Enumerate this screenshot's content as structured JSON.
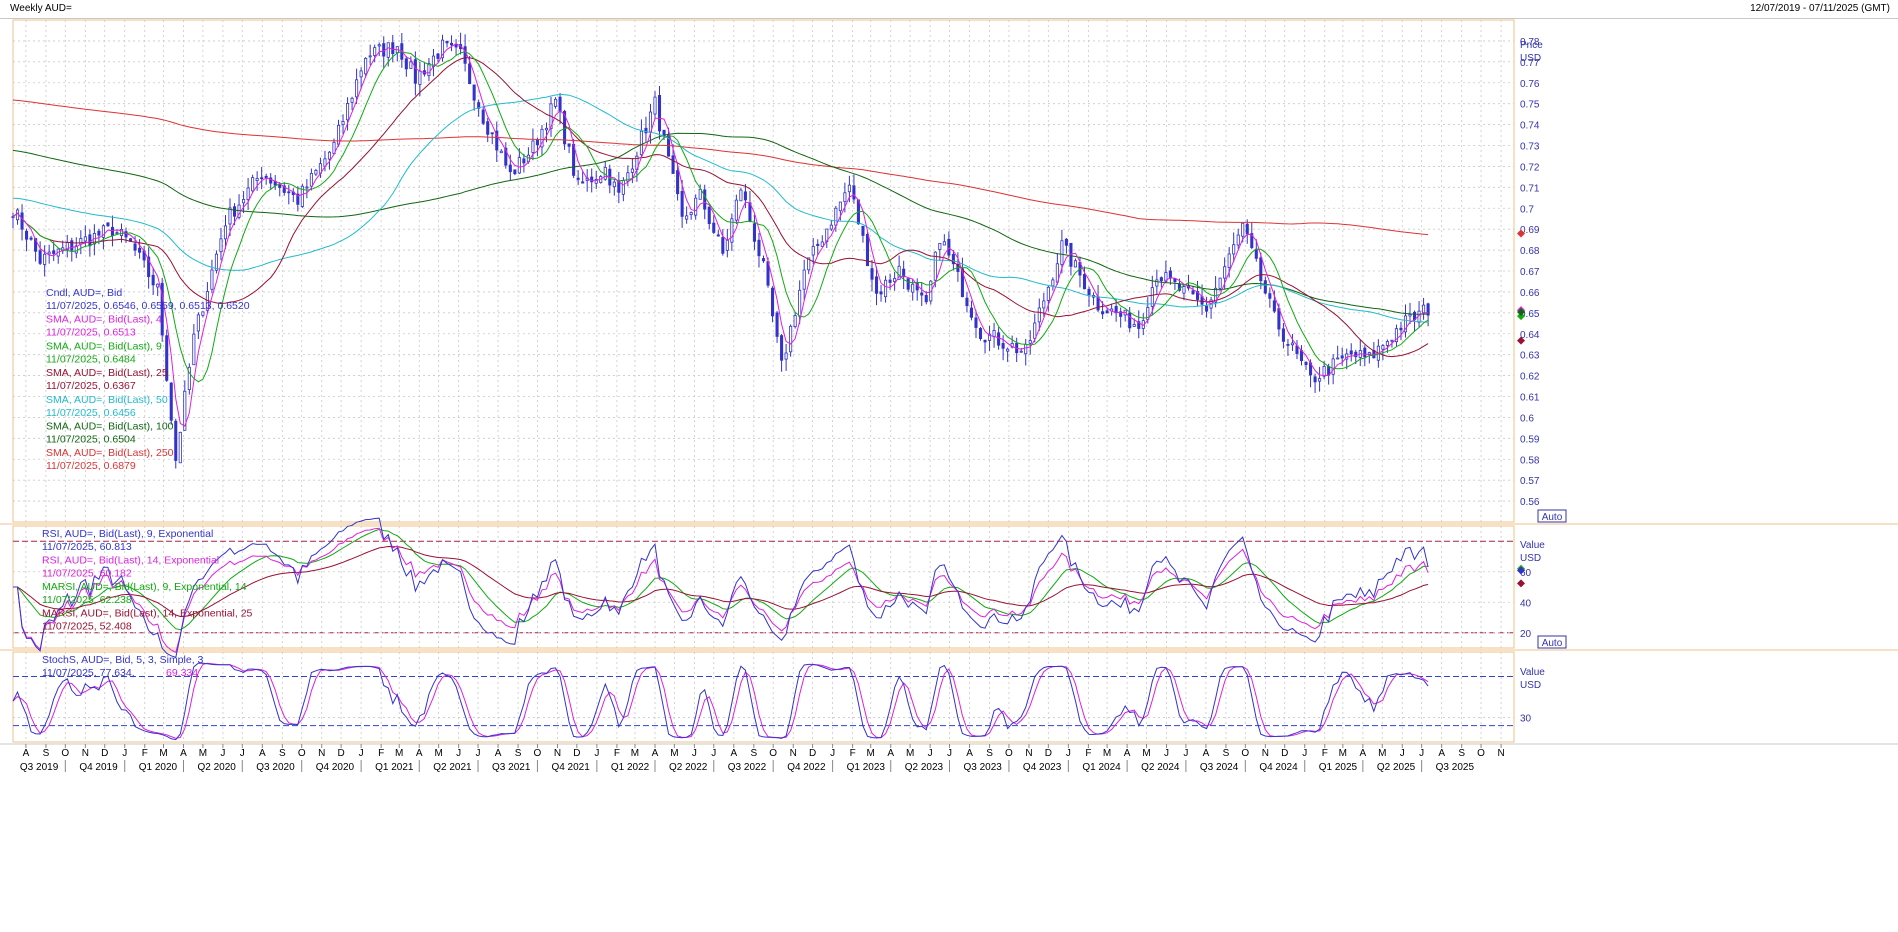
{
  "window": {
    "title": "Weekly AUD=",
    "date_range": "12/07/2019 - 07/11/2025 (GMT)"
  },
  "chart_data": [
    {
      "type": "candlestick",
      "panel": "price",
      "axis_title": "Price",
      "axis_unit": "USD",
      "scale_button": "Auto",
      "ylim": [
        0.55,
        0.79
      ],
      "y_ticks": [
        "0.78",
        "0.77",
        "0.76",
        "0.75",
        "0.74",
        "0.73",
        "0.72",
        "0.71",
        "0.7",
        "0.69",
        "0.68",
        "0.67",
        "0.66",
        "0.65",
        "0.64",
        "0.63",
        "0.62",
        "0.61",
        "0.6",
        "0.59",
        "0.58",
        "0.57",
        "0.56"
      ],
      "x_range": [
        "2019-07-12",
        "2025-11-21"
      ],
      "close_anchors": [
        [
          "2019-07-12",
          0.7
        ],
        [
          "2019-08-23",
          0.675
        ],
        [
          "2019-10-18",
          0.683
        ],
        [
          "2019-12-13",
          0.69
        ],
        [
          "2020-01-10",
          0.683
        ],
        [
          "2020-02-21",
          0.661
        ],
        [
          "2020-03-20",
          0.58
        ],
        [
          "2020-04-17",
          0.638
        ],
        [
          "2020-06-05",
          0.694
        ],
        [
          "2020-07-31",
          0.717
        ],
        [
          "2020-09-25",
          0.704
        ],
        [
          "2020-11-20",
          0.73
        ],
        [
          "2021-01-08",
          0.773
        ],
        [
          "2021-02-26",
          0.778
        ],
        [
          "2021-03-26",
          0.762
        ],
        [
          "2021-05-07",
          0.777
        ],
        [
          "2021-06-04",
          0.773
        ],
        [
          "2021-07-09",
          0.744
        ],
        [
          "2021-08-20",
          0.716
        ],
        [
          "2021-09-24",
          0.729
        ],
        [
          "2021-10-29",
          0.751
        ],
        [
          "2021-12-03",
          0.71
        ],
        [
          "2022-01-14",
          0.719
        ],
        [
          "2022-02-04",
          0.706
        ],
        [
          "2022-04-01",
          0.75
        ],
        [
          "2022-05-13",
          0.694
        ],
        [
          "2022-06-10",
          0.706
        ],
        [
          "2022-07-15",
          0.678
        ],
        [
          "2022-08-12",
          0.71
        ],
        [
          "2022-09-16",
          0.671
        ],
        [
          "2022-10-14",
          0.624
        ],
        [
          "2022-11-18",
          0.67
        ],
        [
          "2023-01-27",
          0.711
        ],
        [
          "2023-03-10",
          0.659
        ],
        [
          "2023-04-14",
          0.671
        ],
        [
          "2023-05-26",
          0.652
        ],
        [
          "2023-06-16",
          0.687
        ],
        [
          "2023-08-18",
          0.641
        ],
        [
          "2023-10-27",
          0.631
        ],
        [
          "2023-12-22",
          0.682
        ],
        [
          "2024-02-16",
          0.654
        ],
        [
          "2024-04-19",
          0.644
        ],
        [
          "2024-05-17",
          0.669
        ],
        [
          "2024-08-02",
          0.652
        ],
        [
          "2024-09-27",
          0.691
        ],
        [
          "2024-11-15",
          0.647
        ],
        [
          "2025-01-10",
          0.618
        ],
        [
          "2025-03-14",
          0.63
        ],
        [
          "2025-04-11",
          0.628
        ],
        [
          "2025-05-30",
          0.644
        ],
        [
          "2025-07-11",
          0.652
        ]
      ],
      "legend": [
        {
          "name": "Cndl, AUD=, Bid",
          "value": "11/07/2025, 0.6546, 0.6559, 0.6513, 0.6520",
          "color": "#3333cc"
        },
        {
          "name": "SMA, AUD=, Bid(Last), 4",
          "value": "11/07/2025, 0.6513",
          "color": "#dd22dd"
        },
        {
          "name": "SMA, AUD=, Bid(Last), 9",
          "value": "11/07/2025, 0.6484",
          "color": "#11aa11"
        },
        {
          "name": "SMA, AUD=, Bid(Last), 25",
          "value": "11/07/2025, 0.6367",
          "color": "#991133"
        },
        {
          "name": "SMA, AUD=, Bid(Last), 50",
          "value": "11/07/2025, 0.6456",
          "color": "#22bbcc"
        },
        {
          "name": "SMA, AUD=, Bid(Last), 100",
          "value": "11/07/2025, 0.6504",
          "color": "#116611"
        },
        {
          "name": "SMA, AUD=, Bid(Last), 250",
          "value": "11/07/2025, 0.6879",
          "color": "#dd3333"
        }
      ],
      "colors": {
        "candle": "#3333cc",
        "sma4": "#dd22dd",
        "sma9": "#11aa11",
        "sma25": "#991133",
        "sma50": "#22bbcc",
        "sma100": "#116611",
        "sma250": "#dd3333"
      }
    },
    {
      "type": "line",
      "panel": "rsi",
      "axis_title": "Value",
      "axis_unit": "USD",
      "scale_button": "Auto",
      "ylim": [
        10,
        90
      ],
      "y_ticks": [
        "60",
        "40",
        "20"
      ],
      "reference_lines": [
        80,
        20
      ],
      "legend": [
        {
          "name": "RSI, AUD=, Bid(Last), 9, Exponential",
          "value": "11/07/2025, 60.813",
          "color": "#3333cc"
        },
        {
          "name": "RSI, AUD=, Bid(Last), 14, Exponential",
          "value": "11/07/2025, 60.182",
          "color": "#dd22dd"
        },
        {
          "name": "MARSI, AUD=, Bid(Last), 9, Exponential, 14",
          "value": "11/07/2025, 62.238",
          "color": "#11aa11"
        },
        {
          "name": "MARSI, AUD=, Bid(Last), 14, Exponential, 25",
          "value": "11/07/2025, 52.408",
          "color": "#991133"
        }
      ]
    },
    {
      "type": "line",
      "panel": "stochastic",
      "axis_title": "Value",
      "axis_unit": "USD",
      "y_ticks": [
        "30"
      ],
      "ylim": [
        0,
        110
      ],
      "reference_lines": [
        80,
        20
      ],
      "legend": [
        {
          "name": "StochS, AUD=, Bid,  5, 3, Simple, 3",
          "value": "11/07/2025, 77.634, ",
          "value2": "69.334",
          "color": "#3333cc",
          "color2": "#dd22dd"
        }
      ]
    }
  ],
  "x_axis": {
    "months": [
      "A",
      "S",
      "O",
      "N",
      "D",
      "J",
      "F",
      "M",
      "A",
      "M",
      "J",
      "J",
      "A",
      "S",
      "O",
      "N",
      "D",
      "J",
      "F",
      "M",
      "A",
      "M",
      "J",
      "J",
      "A",
      "S",
      "O",
      "N",
      "D",
      "J",
      "F",
      "M",
      "A",
      "M",
      "J",
      "J",
      "A",
      "S",
      "O",
      "N",
      "D",
      "J",
      "F",
      "M",
      "A",
      "M",
      "J",
      "J",
      "A",
      "S",
      "O",
      "N",
      "D",
      "J",
      "F",
      "M",
      "A",
      "M",
      "J",
      "J",
      "A",
      "S",
      "O",
      "N",
      "D",
      "J",
      "F",
      "M",
      "A",
      "M",
      "J",
      "J",
      "A",
      "S",
      "O",
      "N"
    ],
    "quarters": [
      "Q3 2019",
      "Q4 2019",
      "Q1 2020",
      "Q2 2020",
      "Q3 2020",
      "Q4 2020",
      "Q1 2021",
      "Q2 2021",
      "Q3 2021",
      "Q4 2021",
      "Q1 2022",
      "Q2 2022",
      "Q3 2022",
      "Q4 2022",
      "Q1 2023",
      "Q2 2023",
      "Q3 2023",
      "Q4 2023",
      "Q1 2024",
      "Q2 2024",
      "Q3 2024",
      "Q4 2024",
      "Q1 2025",
      "Q2 2025",
      "Q3 2025"
    ]
  }
}
